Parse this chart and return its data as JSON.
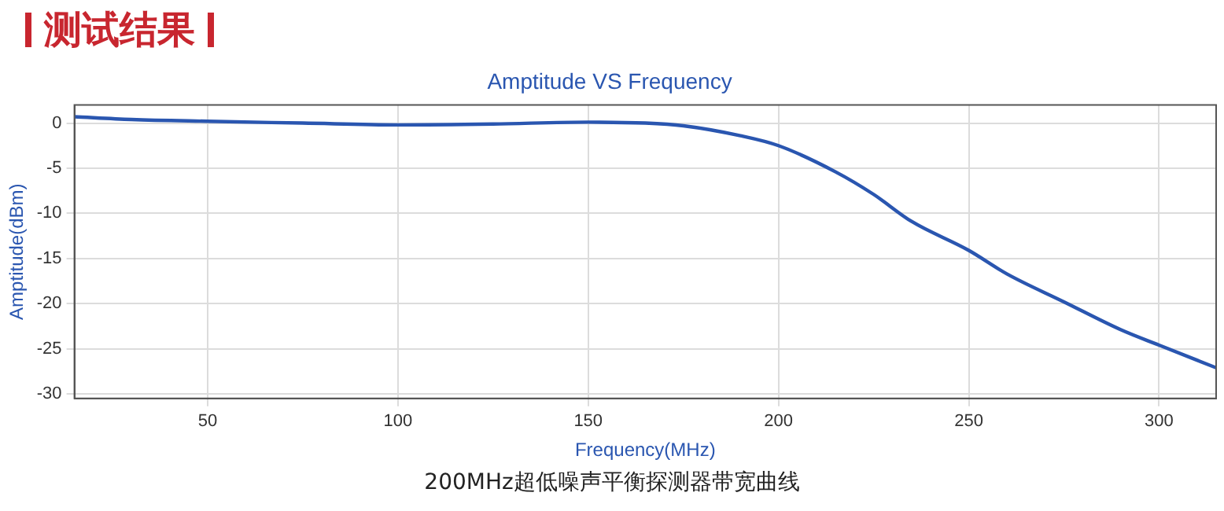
{
  "chart_data": {
    "type": "line",
    "title": "Amptitude VS Frequency",
    "xlabel": "Frequency(MHz)",
    "ylabel": "Amptitude(dBm)",
    "annotations": [
      "测试结果",
      "200MHz超低噪声平衡探测器带宽曲线"
    ],
    "x": [
      15,
      30,
      50,
      75,
      100,
      125,
      150,
      165,
      175,
      190,
      200,
      215,
      225,
      235,
      250,
      260,
      275,
      290,
      300,
      315
    ],
    "series": [
      {
        "color": "#2a56b0",
        "values": [
          0.7,
          0.4,
          0.2,
          0.0,
          -0.2,
          -0.1,
          0.1,
          0.0,
          -0.3,
          -1.4,
          -2.5,
          -5.4,
          -7.9,
          -10.9,
          -14.1,
          -16.7,
          -19.8,
          -22.9,
          -24.6,
          -27.1
        ]
      }
    ],
    "xlim": [
      15,
      315
    ],
    "xticks": [
      50,
      100,
      150,
      200,
      250,
      300
    ],
    "ylim": [
      -30.5,
      2
    ],
    "yticks": [
      0,
      -5,
      -10,
      -15,
      -20,
      -25,
      -30
    ],
    "grid": true,
    "legend": false,
    "marker": "none",
    "line_style": "solid"
  }
}
